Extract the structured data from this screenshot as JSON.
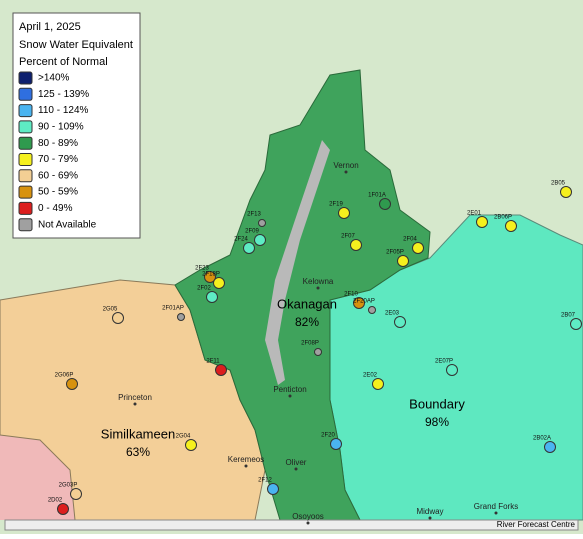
{
  "legend": {
    "date": "April 1, 2025",
    "title": "Snow Water Equivalent",
    "subtitle": "Percent of Normal",
    "items": [
      {
        "label": ">140%",
        "color": "#0d1f6e"
      },
      {
        "label": "125 - 139%",
        "color": "#2f6fe0"
      },
      {
        "label": "110 - 124%",
        "color": "#4ab4f0"
      },
      {
        "label": "90 - 109%",
        "color": "#5eecc4"
      },
      {
        "label": "80 - 89%",
        "color": "#2f9a4e"
      },
      {
        "label": "70 - 79%",
        "color": "#f5f01e"
      },
      {
        "label": "60 - 69%",
        "color": "#f3cf94"
      },
      {
        "label": "50 - 59%",
        "color": "#d7920f"
      },
      {
        "label": "0 - 49%",
        "color": "#dc1e1e"
      },
      {
        "label": "Not Available",
        "color": "#a0a0a0"
      }
    ]
  },
  "regions": [
    {
      "name": "Okanagan",
      "value": "82%"
    },
    {
      "name": "Similkameen",
      "value": "63%"
    },
    {
      "name": "Boundary",
      "value": "98%"
    }
  ],
  "towns": [
    "Vernon",
    "Kelowna",
    "Penticton",
    "Princeton",
    "Keremeos",
    "Oliver",
    "Osoyoos",
    "Midway",
    "Grand Forks"
  ],
  "stations": [
    {
      "label": "2F13",
      "color": "#a0a0a0"
    },
    {
      "label": "2F09",
      "color": "#5eecc4"
    },
    {
      "label": "2F24",
      "color": "#5eecc4"
    },
    {
      "label": "2F19",
      "color": "#f5f01e"
    },
    {
      "label": "1F01A",
      "color": "#2f9a4e"
    },
    {
      "label": "2F07",
      "color": "#f5f01e"
    },
    {
      "label": "2F04",
      "color": "#f5f01e"
    },
    {
      "label": "2F05P",
      "color": "#f5f01e"
    },
    {
      "label": "2E01",
      "color": "#f5f01e"
    },
    {
      "label": "2B06P",
      "color": "#f5f01e"
    },
    {
      "label": "2B05",
      "color": "#f5f01e"
    },
    {
      "label": "2F23",
      "color": "#d7920f"
    },
    {
      "label": "2F18P",
      "color": "#f5f01e"
    },
    {
      "label": "2F02",
      "color": "#5eecc4"
    },
    {
      "label": "2F01AP",
      "color": "#a0a0a0"
    },
    {
      "label": "2G05",
      "color": "#f3cf94"
    },
    {
      "label": "2F10",
      "color": "#d7920f"
    },
    {
      "label": "2F20AP",
      "color": "#a0a0a0"
    },
    {
      "label": "2E03",
      "color": "#5eecc4"
    },
    {
      "label": "2B07",
      "color": "#5eecc4"
    },
    {
      "label": "2F08P",
      "color": "#a0a0a0"
    },
    {
      "label": "2F11",
      "color": "#dc1e1e"
    },
    {
      "label": "2G06P",
      "color": "#d7920f"
    },
    {
      "label": "2E07P",
      "color": "#5eecc4"
    },
    {
      "label": "2E02",
      "color": "#f5f01e"
    },
    {
      "label": "2F20",
      "color": "#4ab4f0"
    },
    {
      "label": "2G04",
      "color": "#f5f01e"
    },
    {
      "label": "2B02A",
      "color": "#4ab4f0"
    },
    {
      "label": "2F12",
      "color": "#4ab4f0"
    },
    {
      "label": "2G03P",
      "color": "#f3cf94"
    },
    {
      "label": "2D02",
      "color": "#dc1e1e"
    }
  ],
  "footer": "River Forecast Centre"
}
